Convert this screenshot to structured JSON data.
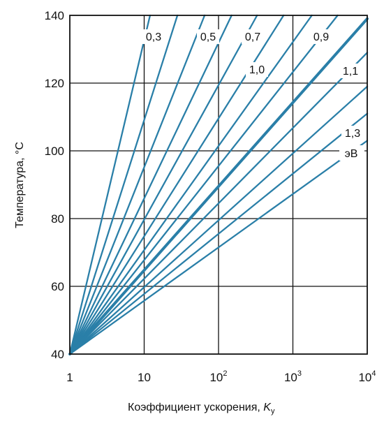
{
  "chart_data": {
    "type": "line",
    "xlabel": "Коэффициент ускорения, ",
    "xlabel_var": "K",
    "xlabel_sub": "у",
    "ylabel": "Температура, °C",
    "x_scale": "log",
    "xlim": [
      1,
      10000
    ],
    "ylim": [
      40,
      140
    ],
    "grid": true,
    "line_color": "#2a7fa8",
    "x_ticks": [
      {
        "value": 1,
        "base": "1",
        "exp": ""
      },
      {
        "value": 10,
        "base": "10",
        "exp": ""
      },
      {
        "value": 100,
        "base": "10",
        "exp": "2"
      },
      {
        "value": 1000,
        "base": "10",
        "exp": "3"
      },
      {
        "value": 10000,
        "base": "10",
        "exp": "4"
      }
    ],
    "y_ticks": [
      "40",
      "60",
      "80",
      "100",
      "120",
      "140"
    ],
    "series_origin": {
      "x": 1,
      "y": 40
    },
    "series": [
      {
        "label": "",
        "end_x": 12,
        "end_y": 140
      },
      {
        "label": "0,3",
        "end_x": 28,
        "end_y": 140
      },
      {
        "label": "",
        "end_x": 65,
        "end_y": 140
      },
      {
        "label": "0,5",
        "end_x": 150,
        "end_y": 140
      },
      {
        "label": "",
        "end_x": 330,
        "end_y": 140
      },
      {
        "label": "0,7",
        "end_x": 750,
        "end_y": 140
      },
      {
        "label": "",
        "end_x": 1800,
        "end_y": 140
      },
      {
        "label": "0,9",
        "end_x": 4000,
        "end_y": 140
      },
      {
        "label": "1,0",
        "end_x": 10000,
        "end_y": 139,
        "bold": true
      },
      {
        "label": "1,1",
        "end_x": 10000,
        "end_y": 129
      },
      {
        "label": "",
        "end_x": 10000,
        "end_y": 119
      },
      {
        "label": "1,3",
        "end_x": 10000,
        "end_y": 111
      },
      {
        "label": "",
        "end_x": 10000,
        "end_y": 103
      }
    ],
    "unit_label": "эВ"
  }
}
